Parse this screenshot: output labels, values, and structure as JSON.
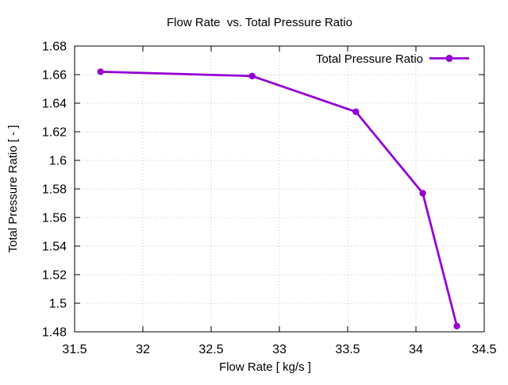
{
  "chart_data": {
    "type": "line",
    "title": "Flow Rate  vs. Total Pressure Ratio",
    "xlabel": "Flow Rate [ kg/s ]",
    "ylabel": "Total Pressure Ratio [ - ]",
    "xlim": [
      31.5,
      34.5
    ],
    "ylim": [
      1.48,
      1.68
    ],
    "xticks": [
      31.5,
      32,
      32.5,
      33,
      33.5,
      34,
      34.5
    ],
    "yticks": [
      1.48,
      1.5,
      1.52,
      1.54,
      1.56,
      1.58,
      1.6,
      1.62,
      1.64,
      1.66,
      1.68
    ],
    "grid": true,
    "legend": {
      "position": "top-right-inside",
      "entries": [
        "Total Pressure Ratio"
      ]
    },
    "series": [
      {
        "name": "Total Pressure Ratio",
        "color": "#9400d3",
        "marker": "filled-circle",
        "points": [
          [
            31.69,
            1.662
          ],
          [
            32.8,
            1.659
          ],
          [
            33.56,
            1.634
          ],
          [
            34.05,
            1.577
          ],
          [
            34.3,
            1.484
          ]
        ]
      }
    ],
    "colors": {
      "background": "#ffffff",
      "grid": "#c8c8c8",
      "border": "#000000",
      "text": "#000000",
      "series_line": "#9400d3"
    }
  }
}
